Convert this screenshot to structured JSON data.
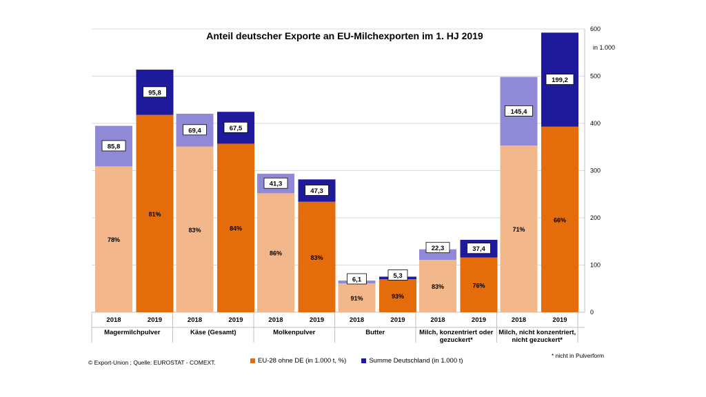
{
  "chart_data": {
    "type": "bar",
    "title": "Anteil deutscher Exporte an EU-Milchexporten im 1. HJ 2019",
    "unit_note": "in 1.000",
    "ylim": [
      0,
      600
    ],
    "yticks": [
      "0",
      "100",
      "200",
      "300",
      "400",
      "500",
      "600"
    ],
    "grid": true,
    "categories": [
      {
        "name": "Magermilchpulver",
        "lines": [
          "Magermilchpulver"
        ]
      },
      {
        "name": "Käse (Gesamt)",
        "lines": [
          "Käse (Gesamt)"
        ]
      },
      {
        "name": "Molkenpulver",
        "lines": [
          "Molkenpulver"
        ]
      },
      {
        "name": "Butter",
        "lines": [
          "Butter"
        ]
      },
      {
        "name": "Milch, konzentriert oder gezuckert*",
        "lines": [
          "Milch, konzentriert oder",
          "gezuckert*"
        ]
      },
      {
        "name": "Milch, nicht konzentriert, nicht gezuckert*",
        "lines": [
          "Milch, nicht konzentriert,",
          "nicht gezuckert*"
        ]
      }
    ],
    "years": [
      "2018",
      "2019"
    ],
    "series": [
      {
        "name": "EU-28 ohne DE (in 1.000 t, %)",
        "key": "eu",
        "values": [
          [
            309,
            418
          ],
          [
            351,
            357
          ],
          [
            252,
            234
          ],
          [
            61,
            70
          ],
          [
            111,
            116
          ],
          [
            353,
            393
          ]
        ],
        "labels": [
          [
            "78%",
            "81%"
          ],
          [
            "83%",
            "84%"
          ],
          [
            "86%",
            "83%"
          ],
          [
            "91%",
            "93%"
          ],
          [
            "83%",
            "76%"
          ],
          [
            "71%",
            "66%"
          ]
        ]
      },
      {
        "name": "Summe Deutschland (in 1.000 t)",
        "key": "de",
        "values": [
          [
            85.8,
            95.8
          ],
          [
            69.4,
            67.5
          ],
          [
            41.3,
            47.3
          ],
          [
            6.1,
            5.3
          ],
          [
            22.3,
            37.4
          ],
          [
            145.4,
            199.2
          ]
        ],
        "labels": [
          [
            "85,8",
            "95,8"
          ],
          [
            "69,4",
            "67,5"
          ],
          [
            "41,3",
            "47,3"
          ],
          [
            "6,1",
            "5,3"
          ],
          [
            "22,3",
            "37,4"
          ],
          [
            "145,4",
            "199,2"
          ]
        ]
      }
    ]
  },
  "colors": {
    "eu_2018": "#f2b78a",
    "eu_2019": "#e46c0a",
    "de_2018": "#8f89d6",
    "de_2019": "#1f1a9c",
    "legend_eu": "#e46c0a",
    "legend_de": "#1f1a9c"
  },
  "source": "© Export-Union ; Quelle: EUROSTAT - COMEXT.",
  "footnote": "* nicht in Pulverform"
}
